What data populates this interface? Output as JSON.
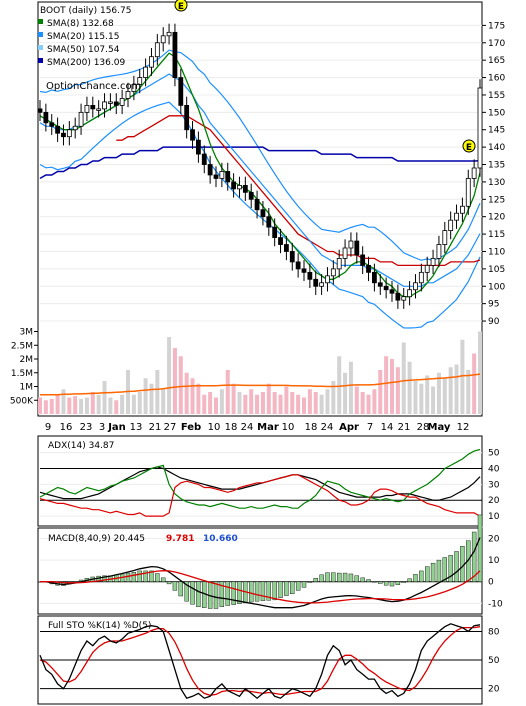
{
  "chart_data": [
    {
      "type": "candlestick",
      "panel": "price",
      "legend": [
        {
          "label": "BOOT (daily) 156.75",
          "color": "#000000"
        },
        {
          "label": "SMA(8) 132.68",
          "color": "#008000"
        },
        {
          "label": "SMA(20) 115.15",
          "color": "#1e90ff"
        },
        {
          "label": "SMA(50) 107.54",
          "color": "#87cefa"
        },
        {
          "label": "SMA(200) 136.09",
          "color": "#0000aa"
        }
      ],
      "watermark": "OptionChance.com",
      "earnings_marker": "E",
      "ylim": [
        88,
        180
      ],
      "y_ticks": [
        175,
        170,
        165,
        160,
        155,
        150,
        145,
        140,
        135,
        130,
        125,
        120,
        115,
        110,
        105,
        100,
        95,
        90
      ],
      "x_tick_labels": [
        "9",
        "16",
        "23",
        "3",
        "Jan",
        "13",
        "21",
        "27",
        "Feb",
        "10",
        "18",
        "24",
        "Mar",
        "10",
        "18",
        "24",
        "Apr",
        "7",
        "14",
        "21",
        "28",
        "May",
        "12"
      ],
      "close": [
        150,
        147,
        146,
        144,
        143,
        145,
        146,
        150,
        152,
        151,
        151,
        153,
        153,
        152,
        154,
        156,
        158,
        160,
        163,
        166,
        170,
        172,
        173,
        160,
        152,
        145,
        142,
        138,
        135,
        132,
        131,
        133,
        130,
        128,
        129,
        127,
        125,
        122,
        120,
        117,
        114,
        112,
        110,
        107,
        105,
        104,
        102,
        100,
        101,
        103,
        105,
        108,
        111,
        113,
        109,
        106,
        104,
        101,
        100,
        99,
        98,
        96,
        97,
        99,
        101,
        104,
        106,
        108,
        112,
        116,
        119,
        121,
        123,
        131,
        134,
        157
      ],
      "sma8": [
        149,
        148,
        147,
        146,
        145,
        145,
        145,
        146,
        147,
        148,
        149,
        150,
        151,
        152,
        153,
        154,
        155,
        157,
        159,
        161,
        163,
        165,
        167,
        166,
        163,
        159,
        155,
        151,
        146,
        141,
        137,
        134,
        132,
        130,
        129,
        128,
        127,
        125,
        123,
        121,
        118,
        116,
        114,
        112,
        110,
        108,
        106,
        104,
        103,
        102,
        102,
        103,
        104,
        106,
        107,
        107,
        106,
        105,
        103,
        101,
        100,
        98,
        97,
        97,
        98,
        99,
        101,
        103,
        106,
        109,
        112,
        115,
        118,
        122,
        126,
        132.68
      ],
      "sma20": [
        147,
        146,
        146,
        145,
        145,
        145,
        146,
        146,
        147,
        148,
        149,
        150,
        151,
        152,
        153,
        154,
        155,
        156,
        157,
        158,
        159,
        160,
        161,
        160,
        159,
        157,
        155,
        152,
        150,
        147,
        145,
        143,
        141,
        139,
        137,
        135,
        133,
        131,
        129,
        127,
        125,
        123,
        121,
        119,
        117,
        115,
        113,
        111,
        109,
        108,
        107,
        106,
        106,
        106,
        106,
        106,
        105,
        105,
        104,
        103,
        102,
        101,
        100,
        100,
        100,
        100,
        101,
        101,
        102,
        103,
        104,
        105,
        107,
        109,
        112,
        115.15
      ],
      "sma50": [
        null,
        null,
        null,
        null,
        null,
        null,
        null,
        null,
        null,
        null,
        null,
        null,
        null,
        142,
        142,
        143,
        143,
        144,
        145,
        146,
        147,
        148,
        149,
        149,
        149,
        149,
        148,
        147,
        146,
        145,
        143,
        141,
        139,
        137,
        135,
        133,
        131,
        129,
        127,
        125,
        123,
        121,
        119,
        117,
        115,
        114,
        113,
        112,
        111,
        110,
        110,
        109,
        109,
        109,
        109,
        108,
        108,
        108,
        107,
        107,
        107,
        106,
        106,
        106,
        106,
        106,
        106,
        106,
        106,
        106,
        107,
        107,
        107,
        107,
        107,
        107.54
      ],
      "sma200": [
        131,
        132,
        132,
        133,
        133,
        134,
        134,
        135,
        135,
        136,
        136,
        137,
        137,
        137,
        138,
        138,
        138,
        139,
        139,
        139,
        139,
        140,
        140,
        140,
        140,
        140,
        140,
        140,
        140,
        140,
        140,
        140,
        140,
        140,
        140,
        140,
        140,
        140,
        140,
        139,
        139,
        139,
        139,
        139,
        139,
        139,
        139,
        139,
        138,
        138,
        138,
        138,
        138,
        138,
        137,
        137,
        137,
        137,
        137,
        137,
        137,
        136,
        136,
        136,
        136,
        136,
        136,
        136,
        136,
        136,
        136,
        136,
        136,
        136,
        136,
        136.09
      ]
    },
    {
      "type": "bar",
      "panel": "volume",
      "y_tick_labels": [
        "3M",
        "2.5M",
        "2M",
        "1.5M",
        "1M",
        "500K"
      ],
      "ylim": [
        0,
        3200000
      ],
      "values": [
        600000,
        500000,
        550000,
        700000,
        900000,
        600000,
        650000,
        550000,
        600000,
        800000,
        700000,
        1200000,
        600000,
        500000,
        700000,
        1600000,
        700000,
        800000,
        1300000,
        1100000,
        1600000,
        900000,
        2800000,
        2400000,
        2100000,
        1500000,
        1300000,
        1100000,
        700000,
        800000,
        600000,
        900000,
        1600000,
        1100000,
        800000,
        700000,
        900000,
        700000,
        800000,
        1100000,
        800000,
        700000,
        1000000,
        800000,
        700000,
        600000,
        900000,
        800000,
        700000,
        900000,
        1200000,
        2100000,
        1500000,
        1900000,
        1000000,
        800000,
        700000,
        900000,
        1600000,
        2100000,
        2000000,
        1700000,
        2600000,
        1900000,
        1200000,
        1100000,
        1400000,
        1000000,
        1500000,
        1300000,
        1700000,
        1800000,
        2700000,
        1600000,
        2200000,
        3000000
      ],
      "up": [
        false,
        false,
        false,
        false,
        true,
        false,
        false,
        true,
        true,
        false,
        true,
        true,
        true,
        false,
        true,
        true,
        true,
        true,
        true,
        true,
        true,
        true,
        true,
        false,
        false,
        false,
        false,
        false,
        false,
        false,
        false,
        true,
        false,
        false,
        true,
        false,
        false,
        false,
        false,
        false,
        false,
        false,
        false,
        false,
        false,
        false,
        false,
        false,
        true,
        true,
        true,
        true,
        true,
        true,
        false,
        false,
        false,
        false,
        false,
        false,
        false,
        false,
        true,
        true,
        true,
        true,
        true,
        true,
        true,
        true,
        true,
        true,
        true,
        true,
        false,
        true
      ],
      "sma_vol": [
        700000,
        700000,
        700000,
        700000,
        720000,
        720000,
        730000,
        730000,
        740000,
        750000,
        760000,
        770000,
        780000,
        790000,
        800000,
        820000,
        830000,
        850000,
        870000,
        890000,
        900000,
        920000,
        950000,
        980000,
        1000000,
        1010000,
        1020000,
        1030000,
        1030000,
        1030000,
        1030000,
        1040000,
        1050000,
        1050000,
        1050000,
        1040000,
        1040000,
        1040000,
        1040000,
        1040000,
        1040000,
        1040000,
        1040000,
        1030000,
        1030000,
        1020000,
        1020000,
        1010000,
        1010000,
        1000000,
        1000000,
        1010000,
        1030000,
        1050000,
        1060000,
        1060000,
        1060000,
        1070000,
        1090000,
        1120000,
        1150000,
        1170000,
        1210000,
        1230000,
        1240000,
        1250000,
        1270000,
        1280000,
        1300000,
        1310000,
        1330000,
        1350000,
        1390000,
        1400000,
        1420000,
        1450000
      ]
    },
    {
      "type": "line",
      "panel": "adx",
      "label": "ADX(14) 34.87",
      "ylim": [
        5,
        58
      ],
      "y_ticks": [
        50,
        40,
        30,
        20,
        10
      ],
      "series": [
        {
          "color": "#000000",
          "values": [
            25,
            24,
            23,
            22,
            21,
            21,
            21,
            21,
            22,
            23,
            24,
            26,
            28,
            30,
            32,
            34,
            36,
            38,
            39,
            40,
            41,
            40,
            38,
            36,
            34,
            33,
            32,
            31,
            30,
            29,
            28,
            27,
            27,
            27,
            27,
            28,
            29,
            30,
            31,
            32,
            33,
            34,
            35,
            36,
            36,
            35,
            34,
            33,
            31,
            29,
            27,
            25,
            24,
            23,
            22,
            22,
            22,
            22,
            22,
            23,
            23,
            24,
            24,
            24,
            23,
            22,
            21,
            20,
            20,
            21,
            22,
            24,
            26,
            28,
            31,
            34.87
          ]
        },
        {
          "color": "#008000",
          "values": [
            22,
            24,
            26,
            28,
            27,
            25,
            24,
            26,
            28,
            27,
            26,
            27,
            29,
            30,
            32,
            33,
            34,
            36,
            38,
            40,
            41,
            42,
            30,
            24,
            21,
            19,
            18,
            17,
            17,
            16,
            17,
            18,
            17,
            16,
            15,
            15,
            16,
            15,
            15,
            16,
            17,
            16,
            16,
            15,
            15,
            18,
            20,
            23,
            28,
            32,
            31,
            30,
            27,
            25,
            24,
            23,
            22,
            21,
            20,
            21,
            20,
            19,
            20,
            24,
            26,
            28,
            30,
            33,
            36,
            40,
            42,
            44,
            46,
            49,
            51,
            52
          ]
        },
        {
          "color": "#dd0000",
          "values": [
            21,
            20,
            19,
            18,
            18,
            17,
            16,
            15,
            15,
            14,
            14,
            13,
            12,
            13,
            12,
            11,
            11,
            12,
            10,
            10,
            10,
            10,
            12,
            28,
            31,
            32,
            31,
            30,
            28,
            28,
            27,
            26,
            25,
            26,
            28,
            29,
            30,
            31,
            31,
            32,
            33,
            34,
            35,
            36,
            36,
            34,
            32,
            30,
            28,
            26,
            23,
            20,
            19,
            17,
            17,
            18,
            20,
            25,
            27,
            27,
            26,
            24,
            23,
            22,
            22,
            20,
            18,
            17,
            16,
            14,
            13,
            12,
            12,
            12,
            12,
            10
          ]
        }
      ]
    },
    {
      "type": "line",
      "panel": "macd",
      "label": "MACD(8,40,9) 20.445",
      "values_shown": [
        "9.781",
        "10.660"
      ],
      "ylim": [
        -14,
        23
      ],
      "y_ticks": [
        20,
        10,
        0,
        -10
      ],
      "macd": [
        0,
        0,
        -0.5,
        -1,
        -1.3,
        -1,
        -0.6,
        0,
        0.6,
        1.2,
        1.7,
        2.2,
        2.6,
        3.2,
        3.8,
        4.5,
        5.2,
        6,
        6.5,
        7,
        6.8,
        6,
        4.5,
        2.5,
        0.5,
        -1.5,
        -3,
        -4.5,
        -5.5,
        -6.5,
        -7.2,
        -7.6,
        -8,
        -8.5,
        -9,
        -9.5,
        -10,
        -10.5,
        -11,
        -11.5,
        -12,
        -12,
        -12,
        -12,
        -11.5,
        -11,
        -10,
        -9,
        -8,
        -7.3,
        -7,
        -6.8,
        -6.5,
        -6.4,
        -6.6,
        -7,
        -7.3,
        -7.8,
        -8.3,
        -8.8,
        -9.2,
        -9,
        -8.5,
        -7.5,
        -6.2,
        -5,
        -3.5,
        -2,
        -0.5,
        1,
        2.5,
        4.5,
        7,
        10,
        14,
        20.445
      ],
      "signal": [
        0,
        0,
        0,
        -0.2,
        -0.4,
        -0.5,
        -0.5,
        -0.4,
        -0.2,
        0.1,
        0.4,
        0.8,
        1.2,
        1.6,
        2,
        2.5,
        3,
        3.5,
        4,
        4.5,
        4.9,
        5.1,
        5,
        4.5,
        3.8,
        3,
        2.2,
        1.3,
        0.5,
        -0.3,
        -1,
        -1.8,
        -2.5,
        -3.2,
        -3.9,
        -4.6,
        -5.3,
        -6,
        -6.6,
        -7.2,
        -7.8,
        -8.3,
        -8.8,
        -9.2,
        -9.5,
        -9.7,
        -9.8,
        -9.8,
        -9.6,
        -9.4,
        -9.1,
        -8.8,
        -8.5,
        -8.2,
        -8,
        -7.9,
        -7.8,
        -7.8,
        -7.9,
        -8,
        -8.2,
        -8.3,
        -8.3,
        -8.2,
        -7.9,
        -7.5,
        -7,
        -6.3,
        -5.5,
        -4.6,
        -3.6,
        -2.5,
        -1.2,
        0.5,
        2.5,
        5
      ]
    },
    {
      "type": "line",
      "panel": "stochastic",
      "label": "Full STO %K(14) %D(5)",
      "ylim": [
        6,
        92
      ],
      "y_ticks": [
        80,
        50,
        20
      ],
      "k": [
        55,
        40,
        35,
        25,
        20,
        30,
        45,
        60,
        70,
        65,
        72,
        75,
        70,
        68,
        72,
        78,
        80,
        82,
        85,
        86,
        85,
        80,
        60,
        40,
        20,
        10,
        12,
        15,
        10,
        12,
        20,
        25,
        18,
        15,
        12,
        20,
        15,
        10,
        15,
        20,
        12,
        10,
        15,
        20,
        18,
        15,
        12,
        20,
        35,
        55,
        65,
        60,
        45,
        50,
        40,
        35,
        30,
        30,
        20,
        15,
        18,
        12,
        15,
        25,
        40,
        60,
        70,
        75,
        80,
        85,
        88,
        86,
        84,
        80,
        86,
        87
      ],
      "d": [
        50,
        48,
        42,
        35,
        28,
        27,
        30,
        38,
        48,
        58,
        64,
        68,
        70,
        70,
        70,
        72,
        74,
        76,
        78,
        81,
        83,
        83,
        78,
        69,
        56,
        41,
        29,
        20,
        15,
        13,
        14,
        17,
        18,
        18,
        17,
        18,
        17,
        16,
        15,
        16,
        15,
        14,
        14,
        15,
        16,
        17,
        17,
        17,
        20,
        28,
        40,
        51,
        55,
        55,
        51,
        46,
        40,
        36,
        31,
        27,
        24,
        21,
        19,
        18,
        22,
        30,
        40,
        52,
        62,
        70,
        76,
        81,
        84,
        84,
        84,
        85
      ]
    }
  ]
}
